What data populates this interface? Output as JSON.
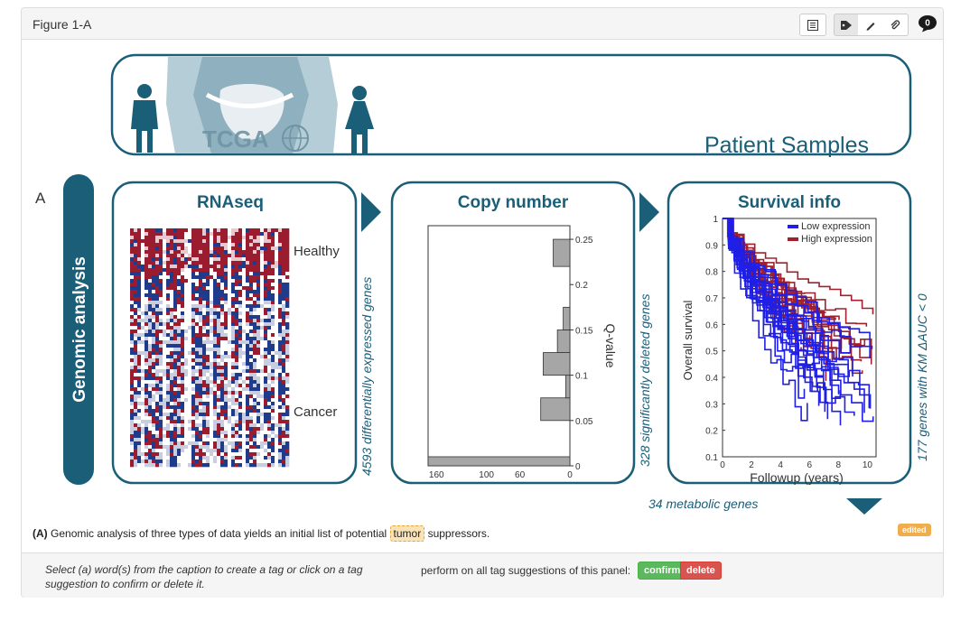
{
  "panel": {
    "title": "Figure 1-A"
  },
  "toolbar": {
    "comment_count": "0"
  },
  "figure": {
    "panel_letter": "A",
    "top_box_title": "Patient Samples",
    "tcga_logo_text": "TCGA",
    "side_label": "Genomic analysis",
    "rnaseq": {
      "title": "RNAseq",
      "label_healthy": "Healthy",
      "label_cancer": "Cancer"
    },
    "arrow1_text": "4593 differentially expressed genes",
    "copy_number": {
      "title": "Copy number",
      "ylabel": "Q-value",
      "y_ticks": [
        "0.25",
        "0.2",
        "0.15",
        "0.1",
        "0.05",
        "0"
      ],
      "x_ticks": [
        "160",
        "100",
        "60",
        "0"
      ]
    },
    "arrow2_text": "328 significantly deleted genes",
    "survival": {
      "title": "Survival info",
      "legend_low": "Low expression",
      "legend_high": "High expression",
      "ylabel": "Overall survival",
      "xlabel": "Followup (years)",
      "y_ticks": [
        "1",
        "0.9",
        "0.8",
        "0.7",
        "0.6",
        "0.5",
        "0.4",
        "0.3",
        "0.2",
        "0.1"
      ],
      "x_ticks": [
        "0",
        "2",
        "4",
        "6",
        "8",
        "10"
      ]
    },
    "arrow3_text": "177 genes with KM  ΔAUC < 0",
    "bottom_text": "34 metabolic genes"
  },
  "caption": {
    "prefix": "(A)",
    "before": " Genomic analysis of three types of data yields an initial list of potential ",
    "tag": "tumor",
    "after": " suppressors."
  },
  "edited_badge": "edited",
  "footer": {
    "hint": "Select (a) word(s) from the caption to create a tag or click on a tag suggestion to confirm or delete it.",
    "perform_label": "perform on all tag suggestions of this panel:",
    "confirm_label": "confirm",
    "delete_label": "delete"
  },
  "colors": {
    "teal": "#1a5e78",
    "healthy_red": "#9b1c2e",
    "cancer_blue": "#1e3b8c",
    "low_blue": "#1f1fe6",
    "high_red": "#a0202e",
    "bar_gray": "#a6a6a6"
  }
}
